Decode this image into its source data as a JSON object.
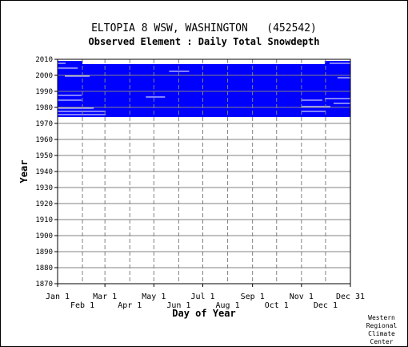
{
  "chart_data": {
    "type": "heatmap",
    "title": "ELTOPIA 8 WSW, WASHINGTON   (452542)",
    "subtitle": "Observed Element : Daily Total Snowdepth",
    "xlabel": "Day of Year",
    "ylabel": "Year",
    "x_ticks_top_row": [
      "Jan 1",
      "Mar 1",
      "May 1",
      "Jul 1",
      "Sep 1",
      "Nov 1",
      "Dec 31"
    ],
    "x_ticks_bottom_row": [
      "Feb 1",
      "Apr 1",
      "Jun 1",
      "Aug 1",
      "Oct 1",
      "Dec 1"
    ],
    "y_ticks": [
      "2010",
      "2000",
      "1990",
      "1980",
      "1970",
      "1960",
      "1950",
      "1940",
      "1930",
      "1920",
      "1910",
      "1900",
      "1890",
      "1880",
      "1870"
    ],
    "ylim": [
      1870,
      2010
    ],
    "grid": true,
    "data_color": "#0000ff",
    "observed_ranges": [
      {
        "day_start": 1,
        "day_end": 365,
        "year_start": 1974,
        "year_end": 2006
      },
      {
        "day_start": 1,
        "day_end": 31,
        "year_start": 1974,
        "year_end": 2008
      },
      {
        "day_start": 334,
        "day_end": 365,
        "year_start": 1974,
        "year_end": 2008
      }
    ],
    "missing_segments": [
      {
        "year": 1986,
        "day_start": 111,
        "day_end": 134
      },
      {
        "year": 2002,
        "day_start": 140,
        "day_end": 164
      },
      {
        "year": 1975,
        "day_start": 1,
        "day_end": 60
      },
      {
        "year": 1977,
        "day_start": 1,
        "day_end": 60
      },
      {
        "year": 1979,
        "day_start": 1,
        "day_end": 45
      },
      {
        "year": 1984,
        "day_start": 1,
        "day_end": 30
      },
      {
        "year": 1987,
        "day_start": 1,
        "day_end": 30
      },
      {
        "year": 1999,
        "day_start": 10,
        "day_end": 40
      },
      {
        "year": 2004,
        "day_start": 1,
        "day_end": 25
      },
      {
        "year": 2007,
        "day_start": 1,
        "day_end": 10
      },
      {
        "year": 1977,
        "day_start": 305,
        "day_end": 334
      },
      {
        "year": 1984,
        "day_start": 305,
        "day_end": 330
      },
      {
        "year": 1980,
        "day_start": 305,
        "day_end": 340
      },
      {
        "year": 1985,
        "day_start": 334,
        "day_end": 365
      },
      {
        "year": 1982,
        "day_start": 345,
        "day_end": 365
      },
      {
        "year": 1998,
        "day_start": 350,
        "day_end": 365
      },
      {
        "year": 2007,
        "day_start": 340,
        "day_end": 365
      }
    ]
  },
  "footer": {
    "line1": "Western",
    "line2": "Regional",
    "line3": "Climate",
    "line4": "Center"
  }
}
